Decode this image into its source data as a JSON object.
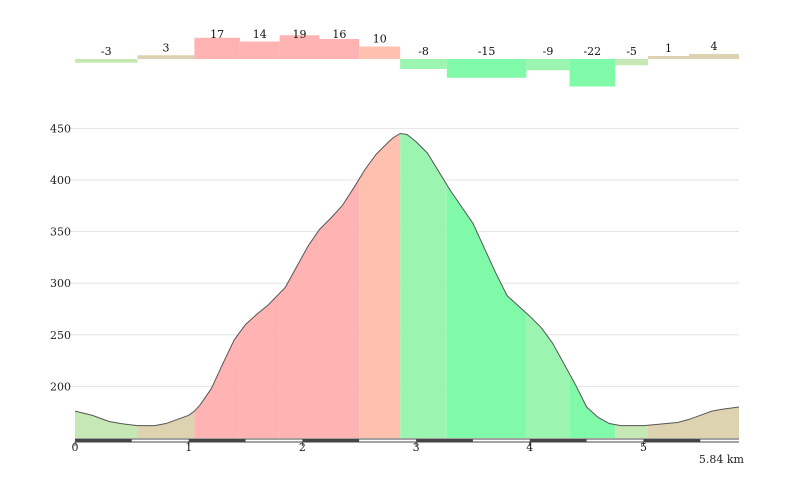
{
  "chart_data": {
    "type": "area",
    "title": "",
    "xlabel": "",
    "ylabel": "",
    "x_unit": "km",
    "total_distance_label": "5.84 km",
    "xlim": [
      0,
      5.84
    ],
    "ylim": [
      150,
      460
    ],
    "x_ticks": [
      0,
      1,
      2,
      3,
      4,
      5
    ],
    "y_ticks": [
      200,
      250,
      300,
      350,
      400,
      450
    ],
    "grid": "horizontal",
    "segment_color_note": "fill color encodes gradient: red = climbing, green = descending, tan = near flat",
    "colors": {
      "steep_up": "#ffb3b3",
      "moderate_up": "#ffc0b0",
      "gentle_up": "#ddd3b0",
      "flat_or_gentle_down": "#c5e8b5",
      "moderate_down": "#9bf5b0",
      "steep_down": "#80f9a8",
      "profile_line": "#555555",
      "grid": "#e3e3e3",
      "axis": "#444444"
    },
    "gradient_segments": [
      {
        "start": 0.0,
        "end": 0.55,
        "grade": -3,
        "label": "-3",
        "color": "#c5e8b5"
      },
      {
        "start": 0.55,
        "end": 1.05,
        "grade": 3,
        "label": "3",
        "color": "#ddd3b0"
      },
      {
        "start": 1.05,
        "end": 1.45,
        "grade": 17,
        "label": "17",
        "color": "#ffb3b3"
      },
      {
        "start": 1.45,
        "end": 1.8,
        "grade": 14,
        "label": "14",
        "color": "#ffb3b3"
      },
      {
        "start": 1.8,
        "end": 2.15,
        "grade": 19,
        "label": "19",
        "color": "#ffb3b3"
      },
      {
        "start": 2.15,
        "end": 2.5,
        "grade": 16,
        "label": "16",
        "color": "#ffb3b3"
      },
      {
        "start": 2.5,
        "end": 2.86,
        "grade": 10,
        "label": "10",
        "color": "#ffc0b0"
      },
      {
        "start": 2.86,
        "end": 3.27,
        "grade": -8,
        "label": "-8",
        "color": "#9bf5b0"
      },
      {
        "start": 3.27,
        "end": 3.97,
        "grade": -15,
        "label": "-15",
        "color": "#80f9a8"
      },
      {
        "start": 3.97,
        "end": 4.35,
        "grade": -9,
        "label": "-9",
        "color": "#9bf5b0"
      },
      {
        "start": 4.35,
        "end": 4.75,
        "grade": -22,
        "label": "-22",
        "color": "#80f9a8"
      },
      {
        "start": 4.75,
        "end": 5.04,
        "grade": -5,
        "label": "-5",
        "color": "#c5e8b5"
      },
      {
        "start": 5.04,
        "end": 5.4,
        "grade": 1,
        "label": "1",
        "color": "#ddd3b0"
      },
      {
        "start": 5.4,
        "end": 5.84,
        "grade": 4,
        "label": "4",
        "color": "#ddd3b0"
      }
    ],
    "profile": {
      "x": [
        0,
        0.15,
        0.3,
        0.4,
        0.55,
        0.7,
        0.8,
        0.9,
        1.0,
        1.05,
        1.1,
        1.2,
        1.3,
        1.4,
        1.5,
        1.6,
        1.7,
        1.85,
        1.95,
        2.05,
        2.15,
        2.25,
        2.35,
        2.45,
        2.55,
        2.65,
        2.75,
        2.8,
        2.86,
        2.92,
        3.0,
        3.1,
        3.2,
        3.3,
        3.4,
        3.5,
        3.6,
        3.7,
        3.8,
        3.9,
        4.0,
        4.1,
        4.2,
        4.3,
        4.4,
        4.5,
        4.6,
        4.7,
        4.8,
        4.9,
        5.0,
        5.1,
        5.2,
        5.3,
        5.4,
        5.5,
        5.6,
        5.7,
        5.84
      ],
      "y": [
        176,
        172,
        166,
        164,
        162,
        162,
        164,
        168,
        172,
        176,
        182,
        198,
        222,
        245,
        260,
        270,
        279,
        296,
        316,
        336,
        352,
        363,
        375,
        392,
        410,
        425,
        436,
        441,
        445,
        444,
        437,
        426,
        408,
        390,
        374,
        358,
        334,
        310,
        288,
        278,
        268,
        257,
        242,
        222,
        202,
        180,
        170,
        164,
        162,
        162,
        162,
        163,
        164,
        165,
        168,
        172,
        176,
        178,
        180
      ]
    }
  }
}
